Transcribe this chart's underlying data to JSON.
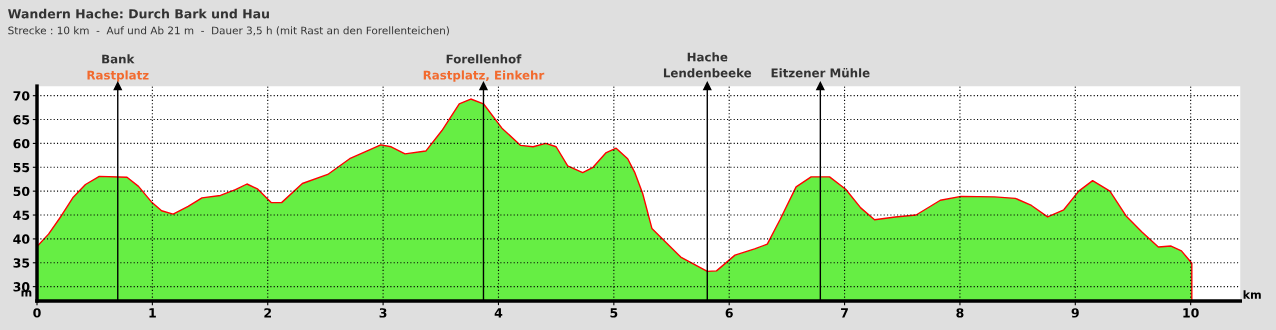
{
  "chart_data": {
    "type": "area",
    "title": "Wandern Hache: Durch Bark und Hau",
    "subtitle": "Strecke : 10 km  -  Auf und Ab 21 m  -  Dauer 3,5 h (mit Rast an den Forellenteichen)",
    "xlabel": "km",
    "ylabel": "m",
    "x": [
      0,
      0.1,
      0.21,
      0.31,
      0.42,
      0.54,
      0.78,
      0.88,
      0.99,
      1.08,
      1.18,
      1.31,
      1.43,
      1.59,
      1.72,
      1.82,
      1.91,
      2.03,
      2.12,
      2.3,
      2.52,
      2.71,
      2.98,
      3.07,
      3.19,
      3.37,
      3.51,
      3.66,
      3.76,
      3.87,
      4.03,
      4.19,
      4.3,
      4.41,
      4.5,
      4.6,
      4.73,
      4.82,
      4.93,
      5.02,
      5.12,
      5.18,
      5.25,
      5.33,
      5.58,
      5.81,
      5.89,
      6.05,
      6.22,
      6.33,
      6.44,
      6.58,
      6.71,
      6.87,
      7.01,
      7.14,
      7.26,
      7.44,
      7.62,
      7.83,
      8.01,
      8.3,
      8.48,
      8.62,
      8.76,
      8.9,
      9.03,
      9.15,
      9.3,
      9.44,
      9.58,
      9.72,
      9.83,
      9.92,
      10.01
    ],
    "series": [
      {
        "color": "#66ee44",
        "values": [
          38.4,
          41,
          44.8,
          48.6,
          51.4,
          53.1,
          52.9,
          51,
          47.8,
          45.9,
          45.2,
          46.8,
          48.6,
          49.1,
          50.3,
          51.5,
          50.5,
          47.6,
          47.6,
          51.6,
          53.5,
          56.8,
          59.7,
          59.3,
          57.8,
          58.4,
          62.7,
          68.3,
          69.3,
          68.3,
          63.2,
          59.6,
          59.3,
          60,
          59.3,
          55.3,
          53.9,
          55,
          58,
          59,
          56.8,
          54,
          49.5,
          42.2,
          36.2,
          33.2,
          33.3,
          36.6,
          37.9,
          38.9,
          44,
          50.9,
          53,
          53,
          50.4,
          46.5,
          44,
          44.6,
          45,
          48.1,
          48.9,
          48.8,
          48.5,
          47,
          44.6,
          46.1,
          50,
          52.2,
          50,
          44.8,
          41.4,
          38.3,
          38.5,
          37.5,
          34.9
        ]
      }
    ],
    "xlim": [
      0,
      10.43
    ],
    "xticks": [
      0,
      1,
      2,
      3,
      4,
      5,
      6,
      7,
      8,
      9,
      10
    ],
    "ylim": [
      27,
      72
    ],
    "yticks": [
      30,
      35,
      40,
      45,
      50,
      55,
      60,
      65,
      70
    ],
    "grid": true,
    "ref_lines": [
      {
        "axis": "x",
        "value": 0.7,
        "label": "Bank",
        "color": "#000000"
      },
      {
        "axis": "x",
        "value": 3.87,
        "label": "Forellenhof",
        "color": "#000000"
      },
      {
        "axis": "x",
        "value": 5.81,
        "label": "Hache\nLendenbeeke",
        "color": "#000000"
      },
      {
        "axis": "x",
        "value": 6.79,
        "label": "Eitzener Mühle",
        "color": "#000000"
      }
    ],
    "annotations": [
      "Rastplatz",
      "Rastplatz, Einkehr"
    ]
  }
}
